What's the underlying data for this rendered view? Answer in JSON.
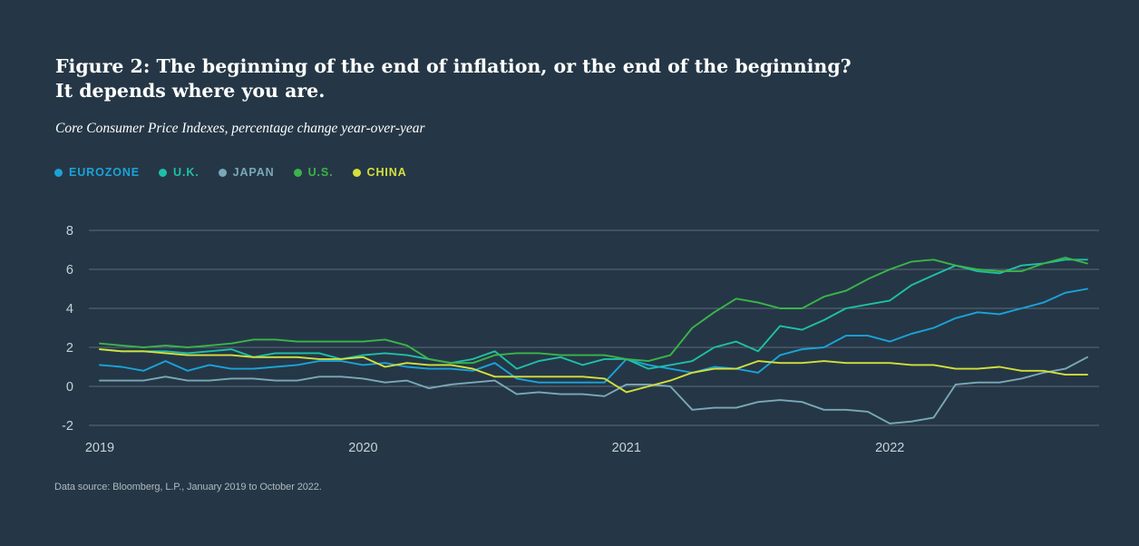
{
  "header": {
    "title_line1": "Figure 2: The beginning of the end of inflation, or the end of the beginning?",
    "title_line2": "It depends where you are.",
    "subtitle": "Core Consumer Price Indexes, percentage change year-over-year"
  },
  "footer": {
    "source": "Data source: Bloomberg, L.P., January 2019 to October 2022."
  },
  "chart_data": {
    "type": "line",
    "title": "Figure 2: The beginning of the end of inflation, or the end of the beginning? It depends where you are.",
    "subtitle": "Core Consumer Price Indexes, percentage change year-over-year",
    "xlabel": "",
    "ylabel": "",
    "x_start": "2019-01",
    "x_end": "2022-10",
    "x_ticks": [
      "2019",
      "2020",
      "2021",
      "2022"
    ],
    "y_ticks": [
      "8",
      "6",
      "4",
      "2",
      "0",
      "-2"
    ],
    "ylim": [
      -2,
      8
    ],
    "grid": true,
    "legend_position": "top-left",
    "series": [
      {
        "name": "EUROZONE",
        "color": "#1aa3d9",
        "values": [
          1.1,
          1.0,
          0.8,
          1.3,
          0.8,
          1.1,
          0.9,
          0.9,
          1.0,
          1.1,
          1.3,
          1.3,
          1.1,
          1.2,
          1.0,
          0.9,
          0.9,
          0.8,
          1.2,
          0.4,
          0.2,
          0.2,
          0.2,
          0.2,
          1.4,
          1.1,
          0.9,
          0.7,
          1.0,
          0.9,
          0.7,
          1.6,
          1.9,
          2.0,
          2.6,
          2.6,
          2.3,
          2.7,
          3.0,
          3.5,
          3.8,
          3.7,
          4.0,
          4.3,
          4.8,
          5.0
        ]
      },
      {
        "name": "U.K.",
        "color": "#1fbfa8",
        "values": [
          1.9,
          1.8,
          1.8,
          1.8,
          1.7,
          1.8,
          1.9,
          1.5,
          1.7,
          1.7,
          1.7,
          1.4,
          1.6,
          1.7,
          1.6,
          1.4,
          1.2,
          1.4,
          1.8,
          0.9,
          1.3,
          1.5,
          1.1,
          1.4,
          1.4,
          0.9,
          1.1,
          1.3,
          2.0,
          2.3,
          1.8,
          3.1,
          2.9,
          3.4,
          4.0,
          4.2,
          4.4,
          5.2,
          5.7,
          6.2,
          5.9,
          5.8,
          6.2,
          6.3,
          6.5,
          6.5
        ]
      },
      {
        "name": "JAPAN",
        "color": "#7aa8b8",
        "values": [
          0.3,
          0.3,
          0.3,
          0.5,
          0.3,
          0.3,
          0.4,
          0.4,
          0.3,
          0.3,
          0.5,
          0.5,
          0.4,
          0.2,
          0.3,
          -0.1,
          0.1,
          0.2,
          0.3,
          -0.4,
          -0.3,
          -0.4,
          -0.4,
          -0.5,
          0.1,
          0.1,
          0.0,
          -1.2,
          -1.1,
          -1.1,
          -0.8,
          -0.7,
          -0.8,
          -1.2,
          -1.2,
          -1.3,
          -1.9,
          -1.8,
          -1.6,
          0.1,
          0.2,
          0.2,
          0.4,
          0.7,
          0.9,
          1.5
        ]
      },
      {
        "name": "U.S.",
        "color": "#3bb44a",
        "values": [
          2.2,
          2.1,
          2.0,
          2.1,
          2.0,
          2.1,
          2.2,
          2.4,
          2.4,
          2.3,
          2.3,
          2.3,
          2.3,
          2.4,
          2.1,
          1.4,
          1.2,
          1.2,
          1.6,
          1.7,
          1.7,
          1.6,
          1.6,
          1.6,
          1.4,
          1.3,
          1.6,
          3.0,
          3.8,
          4.5,
          4.3,
          4.0,
          4.0,
          4.6,
          4.9,
          5.5,
          6.0,
          6.4,
          6.5,
          6.2,
          6.0,
          5.9,
          5.9,
          6.3,
          6.6,
          6.3
        ]
      },
      {
        "name": "CHINA",
        "color": "#d4e03a",
        "values": [
          1.9,
          1.8,
          1.8,
          1.7,
          1.6,
          1.6,
          1.6,
          1.5,
          1.5,
          1.5,
          1.4,
          1.4,
          1.5,
          1.0,
          1.2,
          1.1,
          1.1,
          0.9,
          0.5,
          0.5,
          0.5,
          0.5,
          0.5,
          0.4,
          -0.3,
          0.0,
          0.3,
          0.7,
          0.9,
          0.9,
          1.3,
          1.2,
          1.2,
          1.3,
          1.2,
          1.2,
          1.2,
          1.1,
          1.1,
          0.9,
          0.9,
          1.0,
          0.8,
          0.8,
          0.6,
          0.6
        ]
      }
    ]
  }
}
